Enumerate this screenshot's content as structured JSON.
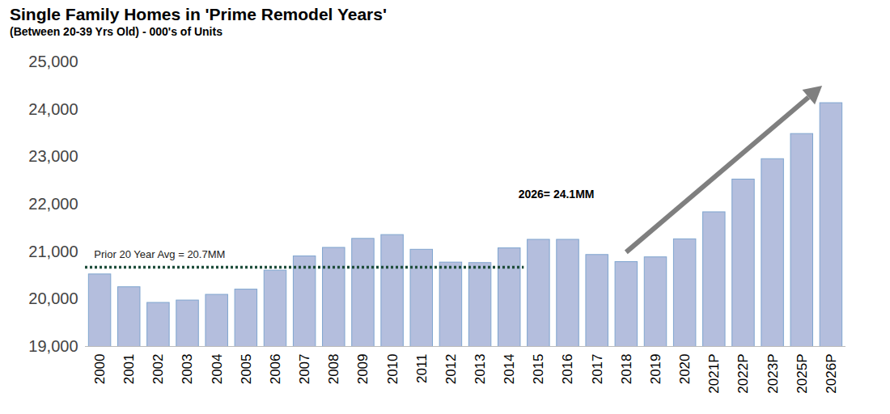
{
  "chart_data": {
    "type": "bar",
    "title": "Single Family Homes in 'Prime Remodel Years'",
    "subtitle": "(Between 20-39 Yrs Old) - 000's of Units",
    "categories": [
      "2000",
      "2001",
      "2002",
      "2003",
      "2004",
      "2005",
      "2006",
      "2007",
      "2008",
      "2009",
      "2010",
      "2011",
      "2012",
      "2013",
      "2014",
      "2015",
      "2016",
      "2017",
      "2018",
      "2019",
      "2020",
      "2021P",
      "2022P",
      "2023P",
      "2025P",
      "2026P"
    ],
    "values": [
      20520,
      20250,
      19920,
      19970,
      20090,
      20200,
      20600,
      20900,
      21080,
      21270,
      21350,
      21040,
      20770,
      20760,
      21070,
      21250,
      21250,
      20930,
      20780,
      20880,
      21260,
      21830,
      22520,
      22950,
      23480,
      24130
    ],
    "color": "#b4bedd",
    "ylim": [
      19000,
      25000
    ],
    "yticks": [
      {
        "value": 19000,
        "label": "19,000"
      },
      {
        "value": 20000,
        "label": "20,000"
      },
      {
        "value": 21000,
        "label": "21,000"
      },
      {
        "value": 22000,
        "label": "22,000"
      },
      {
        "value": 23000,
        "label": "23,000"
      },
      {
        "value": 24000,
        "label": "24,000"
      },
      {
        "value": 25000,
        "label": "25,000"
      }
    ],
    "grid": false,
    "annotations": [
      {
        "text": "Prior 20 Year Avg = 20.7MM",
        "value": 20670,
        "from": "2000",
        "to": "2014",
        "color": "#1e4d3b",
        "line_style": "dotted"
      },
      {
        "text": "2026= 24.1MM"
      }
    ]
  }
}
